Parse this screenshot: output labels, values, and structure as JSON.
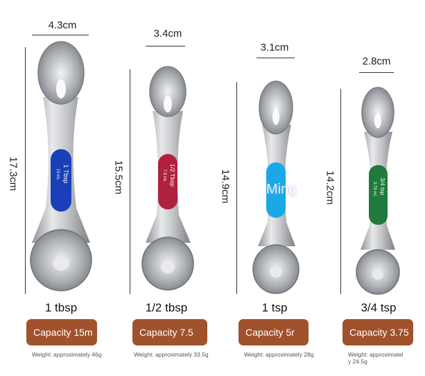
{
  "spoons": [
    {
      "width_label": "4.3cm",
      "height_label": "17.3cm",
      "size_label": "1 tbsp",
      "handle_text": "1 Tbsp",
      "handle_sub": "15 mL",
      "capacity": "Capacity 15m",
      "weight": "Weight: approximately 46g",
      "handle_color": "#1b3fb8"
    },
    {
      "width_label": "3.4cm",
      "height_label": "15.5cm",
      "size_label": "1/2 tbsp",
      "handle_text": "1/2 Tbsp",
      "handle_sub": "7.5 mL",
      "capacity": "Capacity 7.5",
      "weight": "Weight: approximately 33.5g",
      "handle_color": "#b0203f"
    },
    {
      "width_label": "3.1cm",
      "height_label": "14.9cm",
      "size_label": "1 tsp",
      "handle_text": "",
      "handle_sub": "",
      "capacity": "Capacity 5r",
      "weight": "Weight: approximately 28g",
      "handle_color": "#1aa8e6"
    },
    {
      "width_label": "2.8cm",
      "height_label": "14.2cm",
      "size_label": "3/4 tsp",
      "handle_text": "3/4 tsp",
      "handle_sub": "3.75 mL",
      "capacity": "Capacity 3.75",
      "weight": "Weight: approximatel",
      "weight2": "y 24.5g",
      "handle_color": "#1f7a3c"
    }
  ],
  "watermark": "Ming"
}
